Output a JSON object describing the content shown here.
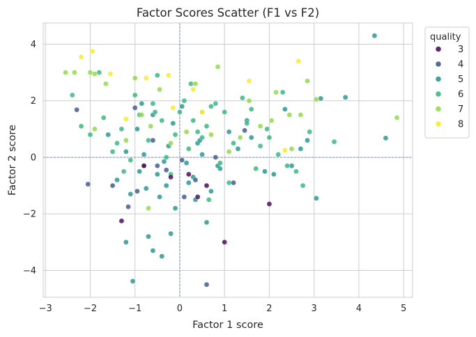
{
  "chart_data": {
    "type": "scatter",
    "title": "Factor Scores Scatter (F1 vs F2)",
    "xlabel": "Factor 1 score",
    "ylabel": "Factor 2 score",
    "xlim": [
      -3.05,
      5.2
    ],
    "ylim": [
      -4.95,
      4.75
    ],
    "xticks": [
      -3,
      -2,
      -1,
      0,
      1,
      2,
      3,
      4,
      5
    ],
    "yticks": [
      -4,
      -2,
      0,
      2,
      4
    ],
    "grid": true,
    "reference_lines": {
      "x": 0,
      "y": 0
    },
    "legend": {
      "title": "quality",
      "placement": "outside-top-right"
    },
    "colors": {
      "3": "#440154",
      "4": "#3b528b",
      "5": "#21918c",
      "6": "#2fb47c",
      "7": "#8fd744",
      "8": "#fde725"
    },
    "series": [
      {
        "name": "3",
        "color": "#440154",
        "x": [
          -1.3,
          0.4,
          1.0,
          2.0,
          -0.2,
          0.6,
          -0.8,
          0.2
        ],
        "y": [
          -2.25,
          -1.4,
          -3.0,
          -1.65,
          -0.7,
          -1.0,
          -0.3,
          -0.6
        ]
      },
      {
        "name": "4",
        "color": "#3b528b",
        "x": [
          0.6,
          -2.3,
          -2.05,
          -1.5,
          -1.15,
          -0.5,
          0.35,
          1.45,
          -0.95,
          0.05,
          -1.0,
          0.8,
          -0.3,
          1.2,
          0.1,
          -0.6
        ],
        "y": [
          -4.5,
          1.68,
          -0.95,
          -1.0,
          -1.75,
          -0.3,
          -0.8,
          0.95,
          -1.2,
          -0.1,
          1.75,
          0.0,
          -0.45,
          -0.9,
          -1.4,
          0.6
        ]
      },
      {
        "name": "5",
        "color": "#21918c",
        "x": [
          4.35,
          4.6,
          3.7,
          3.15,
          -1.05,
          -1.2,
          -0.4,
          0.6,
          -0.6,
          -0.2,
          -0.1,
          0.35,
          -0.7,
          2.35,
          2.85,
          3.05,
          1.9,
          2.5,
          -0.9,
          -0.3,
          -1.4,
          -0.8,
          -0.5,
          0.2,
          0.9,
          1.3,
          0.4,
          -0.15,
          0.7,
          -1.6,
          -0.95,
          0.15,
          -0.45,
          1.1,
          0.5,
          -0.75,
          0.3,
          -0.25,
          1.6,
          2.1,
          -1.2,
          -0.6,
          0.05,
          0.85,
          -1.1,
          1.5,
          -0.35,
          0.45,
          -0.85,
          2.7
        ],
        "y": [
          4.3,
          0.68,
          2.12,
          2.08,
          -4.38,
          -3.0,
          -3.5,
          -2.3,
          -3.3,
          -2.7,
          -1.8,
          -1.5,
          -2.8,
          1.7,
          0.6,
          -1.45,
          -0.5,
          -0.3,
          -0.5,
          -1.0,
          -0.8,
          0.1,
          -0.6,
          -0.9,
          -0.4,
          0.3,
          0.5,
          1.2,
          -1.2,
          0.8,
          1.0,
          -0.2,
          -1.4,
          0.9,
          0.1,
          -1.1,
          -0.7,
          0.4,
          0.7,
          -0.6,
          0.2,
          1.5,
          1.8,
          -0.3,
          -1.3,
          1.3,
          -0.15,
          0.6,
          1.9,
          0.3
        ]
      },
      {
        "name": "6",
        "color": "#2fb47c",
        "x": [
          -2.4,
          -1.8,
          -0.5,
          3.45,
          2.3,
          -1.0,
          0.0,
          0.7,
          -0.7,
          1.5,
          1.8,
          -1.3,
          0.2,
          0.9,
          -0.4,
          2.6,
          -2.0,
          -1.5,
          0.4,
          1.2,
          -0.2,
          2.9,
          -0.9,
          0.6,
          1.7,
          -1.1,
          0.1,
          2.2,
          -0.6,
          1.0,
          -1.7,
          0.5,
          1.4,
          -0.3,
          2.0,
          -0.8,
          0.3,
          1.1,
          -1.4,
          2.4,
          0.8,
          -2.2,
          1.6,
          -0.1,
          0.65,
          -1.25,
          1.95,
          -0.55,
          2.75,
          0.25
        ],
        "y": [
          2.2,
          3.0,
          2.9,
          0.55,
          2.3,
          2.2,
          1.6,
          1.8,
          0.6,
          1.2,
          0.4,
          1.0,
          0.3,
          -0.2,
          1.3,
          -0.5,
          0.8,
          0.2,
          0.9,
          0.5,
          -0.6,
          0.9,
          1.5,
          1.1,
          -0.4,
          -0.1,
          2.0,
          0.1,
          1.9,
          1.6,
          1.4,
          0.7,
          2.1,
          0.0,
          0.7,
          -0.3,
          1.3,
          -0.9,
          0.5,
          -0.3,
          1.9,
          1.1,
          1.7,
          0.8,
          -1.5,
          -0.5,
          1.0,
          1.6,
          -1.0,
          2.6
        ]
      },
      {
        "name": "7",
        "color": "#8fd744",
        "x": [
          -2.35,
          -2.55,
          -2.0,
          -1.9,
          -1.65,
          -1.0,
          -0.7,
          0.85,
          1.55,
          2.15,
          2.45,
          2.85,
          3.05,
          4.85,
          -0.45,
          0.35,
          -1.9,
          -0.65,
          1.8,
          2.5,
          -0.2,
          0.5,
          1.1,
          -1.2,
          2.05,
          0.7,
          -0.85,
          1.35,
          0.15,
          2.7
        ],
        "y": [
          3.0,
          3.0,
          3.0,
          2.95,
          2.6,
          2.8,
          -1.8,
          3.2,
          2.0,
          2.3,
          1.5,
          2.7,
          2.05,
          1.4,
          2.4,
          2.6,
          1.0,
          1.1,
          1.1,
          0.3,
          0.5,
          1.6,
          0.2,
          0.6,
          1.3,
          0.8,
          1.5,
          0.7,
          0.9,
          1.5
        ]
      },
      {
        "name": "8",
        "color": "#fde725",
        "x": [
          -2.2,
          -1.95,
          -1.55,
          -0.25,
          0.3,
          1.55,
          2.65,
          2.35,
          -0.75,
          0.5,
          -0.15,
          -1.2
        ],
        "y": [
          3.55,
          3.75,
          2.95,
          2.9,
          2.4,
          2.7,
          3.4,
          0.25,
          2.8,
          1.6,
          1.75,
          1.35
        ]
      }
    ]
  }
}
